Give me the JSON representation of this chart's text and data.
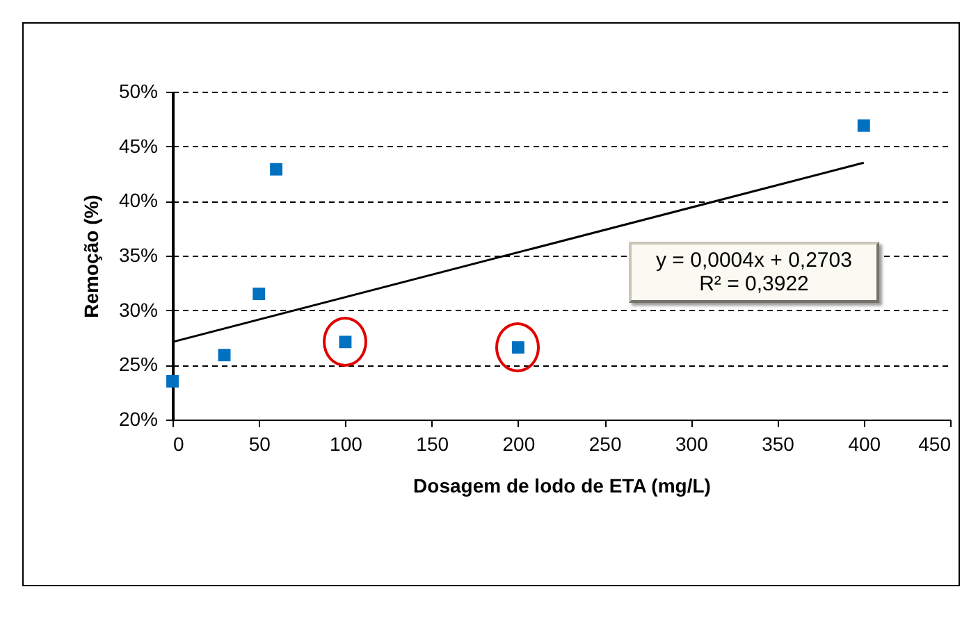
{
  "chart_data": {
    "type": "scatter",
    "xlabel": "Dosagem de lodo de ETA (mg/L)",
    "ylabel": "Remoção (%)",
    "xlim": [
      0,
      450
    ],
    "xticks": [
      0,
      50,
      100,
      150,
      200,
      250,
      300,
      350,
      400,
      450
    ],
    "ylim": [
      20,
      50
    ],
    "yticks": [
      {
        "value": 20,
        "label": "20%"
      },
      {
        "value": 25,
        "label": "25%"
      },
      {
        "value": 30,
        "label": "30%"
      },
      {
        "value": 35,
        "label": "35%"
      },
      {
        "value": 40,
        "label": "40%"
      },
      {
        "value": 45,
        "label": "45%"
      },
      {
        "value": 50,
        "label": "50%"
      }
    ],
    "grid": "y",
    "annotations": [
      "y = 0,0004x + 0,2703",
      "R² = 0,3922"
    ],
    "series": [
      {
        "type": "scatter",
        "marker": "square",
        "color": "#0070c0",
        "x": [
          0,
          30,
          50,
          60,
          100,
          200,
          400
        ],
        "values": [
          23.5,
          25.9,
          31.5,
          42.9,
          27.1,
          26.6,
          46.9
        ]
      },
      {
        "type": "line",
        "color": "#000000",
        "x": [
          0,
          400
        ],
        "values": [
          27.1,
          43.5
        ]
      }
    ]
  }
}
